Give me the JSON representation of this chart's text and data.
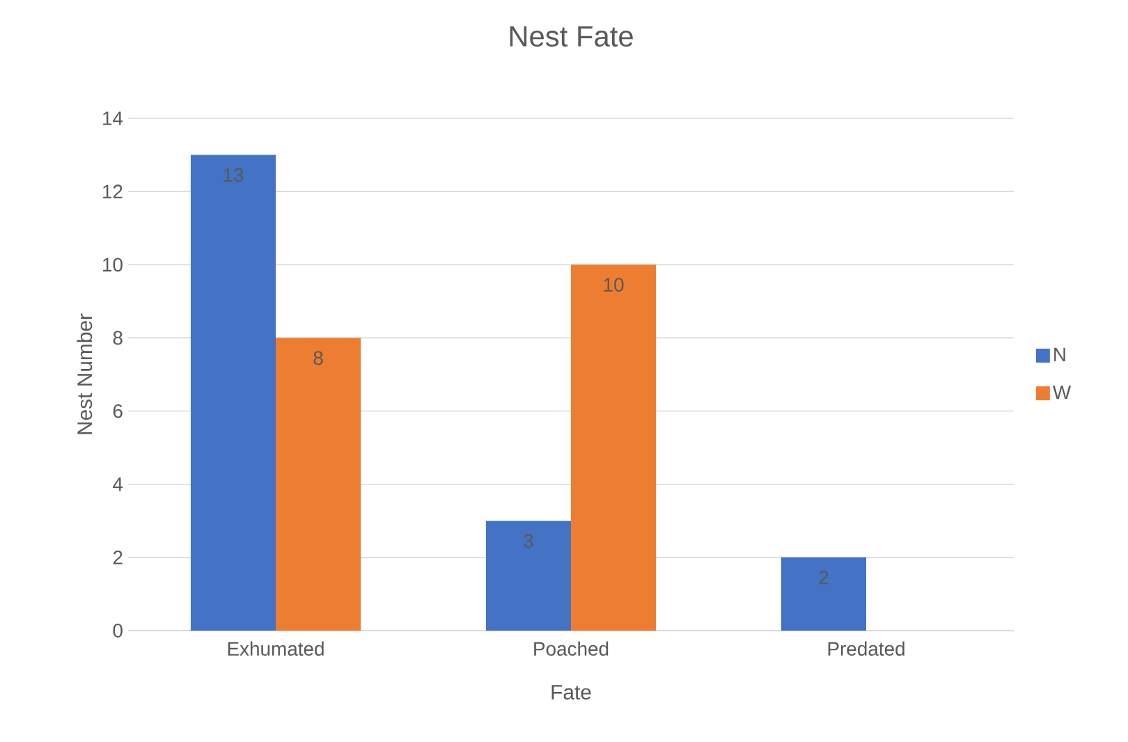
{
  "chart_data": {
    "type": "bar",
    "title": "Nest Fate",
    "xlabel": "Fate",
    "ylabel": "Nest Number",
    "categories": [
      "Exhumated",
      "Poached",
      "Predated"
    ],
    "series": [
      {
        "name": "N",
        "color": "#4472c4",
        "values": [
          13,
          3,
          2
        ]
      },
      {
        "name": "W",
        "color": "#ed7d31",
        "values": [
          8,
          10,
          null
        ]
      }
    ],
    "ylim": [
      0,
      14
    ],
    "yticks": [
      0,
      2,
      4,
      6,
      8,
      10,
      12,
      14
    ],
    "grid": "y",
    "legend": "right",
    "data_labels": true
  }
}
